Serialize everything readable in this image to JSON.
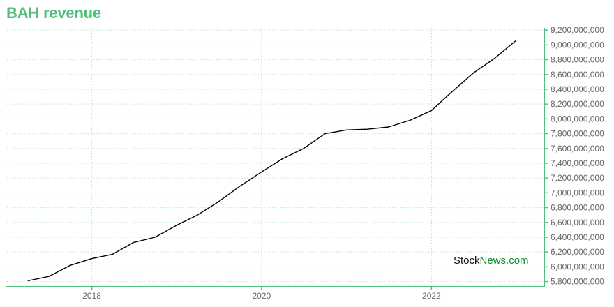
{
  "colors": {
    "accent": "#52c07d",
    "grid": "#b8e6c8",
    "line": "#000000",
    "tick_text": "#666666",
    "watermark_accent": "#0a8f2a"
  },
  "watermark": {
    "part1": "Stock",
    "part2": "News.com"
  },
  "chart_data": {
    "type": "line",
    "title": "BAH revenue",
    "xlabel": "",
    "ylabel": "",
    "grid": true,
    "legend": "none",
    "y_axis_side": "right",
    "x_ticks": [
      "2018",
      "2020",
      "2022"
    ],
    "y_ticks": [
      5800000000,
      6000000000,
      6200000000,
      6400000000,
      6600000000,
      6800000000,
      7000000000,
      7200000000,
      7400000000,
      7600000000,
      7800000000,
      8000000000,
      8200000000,
      8400000000,
      8600000000,
      8800000000,
      9000000000,
      9200000000
    ],
    "ylim": [
      5730000000,
      9230000000
    ],
    "xlim": [
      "2017-01-01",
      "2023-05-01"
    ],
    "series": [
      {
        "x": [
          "2017-03-31",
          "2017-06-30",
          "2017-09-30",
          "2017-12-31",
          "2018-03-31",
          "2018-06-30",
          "2018-09-30",
          "2018-12-31",
          "2019-03-31",
          "2019-06-30",
          "2019-09-30",
          "2019-12-31",
          "2020-03-31",
          "2020-06-30",
          "2020-09-30",
          "2020-12-31",
          "2021-03-31",
          "2021-06-30",
          "2021-09-30",
          "2021-12-31",
          "2022-03-31",
          "2022-06-30",
          "2022-09-30",
          "2022-12-31"
        ],
        "values": [
          5810000000,
          5870000000,
          6020000000,
          6110000000,
          6170000000,
          6330000000,
          6400000000,
          6560000000,
          6700000000,
          6880000000,
          7090000000,
          7280000000,
          7460000000,
          7600000000,
          7800000000,
          7850000000,
          7860000000,
          7890000000,
          7980000000,
          8110000000,
          8370000000,
          8620000000,
          8820000000,
          9060000000
        ]
      }
    ]
  }
}
